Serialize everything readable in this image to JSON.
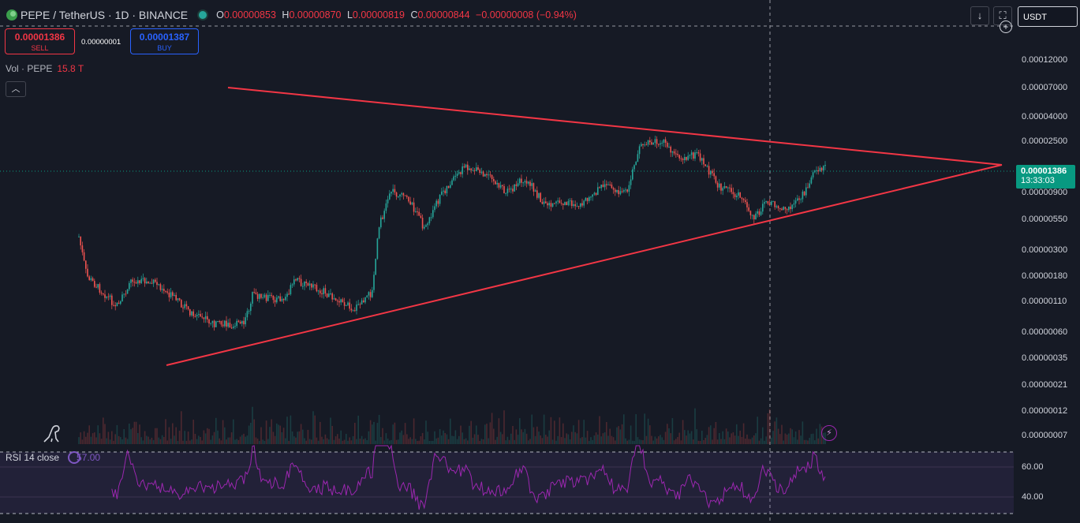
{
  "header": {
    "symbol_title": "PEPE / TetherUS · 1D · BINANCE",
    "ohlc": {
      "o_label": "O",
      "o": "0.00000853",
      "h_label": "H",
      "h": "0.00000870",
      "l_label": "L",
      "l": "0.00000819",
      "c_label": "C",
      "c": "0.00000844",
      "change": "−0.00000008 (−0.94%)"
    },
    "currency": "USDT",
    "download_icon": "download-icon",
    "fullscreen_icon": "fullscreen-icon"
  },
  "trade": {
    "sell_price": "0.00001386",
    "sell_label": "SELL",
    "spread": "0.00000001",
    "buy_price": "0.00001387",
    "buy_label": "BUY"
  },
  "volume": {
    "label": "Vol · PEPE",
    "value": "15.8 T"
  },
  "rsi": {
    "label": "RSI 14 close",
    "value": "57.00"
  },
  "price_axis": {
    "ticks": [
      "0.00012000",
      "0.00007000",
      "0.00004000",
      "0.00002500",
      "0.00000900",
      "0.00000550",
      "0.00000300",
      "0.00000180",
      "0.00000110",
      "0.00000060",
      "0.00000035",
      "0.00000021",
      "0.00000012",
      "0.00000007"
    ],
    "current_price": "0.00001386",
    "countdown": "13:33:03"
  },
  "rsi_axis": {
    "ticks": [
      "60.00",
      "40.00"
    ]
  },
  "colors": {
    "up": "#26a69a",
    "down": "#ef5350",
    "trendline": "#f23645",
    "rsi": "#9c27b0",
    "background": "#161a25"
  }
}
